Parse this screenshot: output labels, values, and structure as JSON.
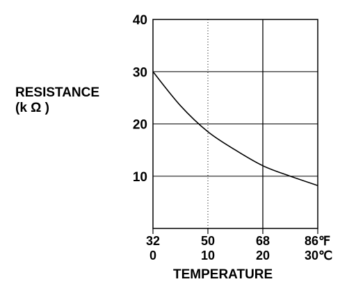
{
  "chart_data": {
    "type": "line",
    "title": "",
    "ylabel": "RESISTANCE",
    "ylabel_unit": "(k Ω )",
    "xlabel": "TEMPERATURE",
    "ylim": [
      0,
      40
    ],
    "xlim_c": [
      0,
      30
    ],
    "y_ticks": [
      "10",
      "20",
      "30",
      "40"
    ],
    "x_ticks_f": [
      "32",
      "50",
      "68",
      "86℉"
    ],
    "x_ticks_c": [
      "0",
      "10",
      "20",
      "30℃"
    ],
    "grid": true,
    "series": [
      {
        "x": [
          0,
          5,
          10,
          15,
          20,
          25,
          30
        ],
        "y": [
          30,
          23.5,
          18.5,
          15,
          12,
          10,
          8.2
        ]
      }
    ],
    "colors": {
      "line": "#000000",
      "grid": "#000000",
      "background": "#ffffff"
    }
  }
}
